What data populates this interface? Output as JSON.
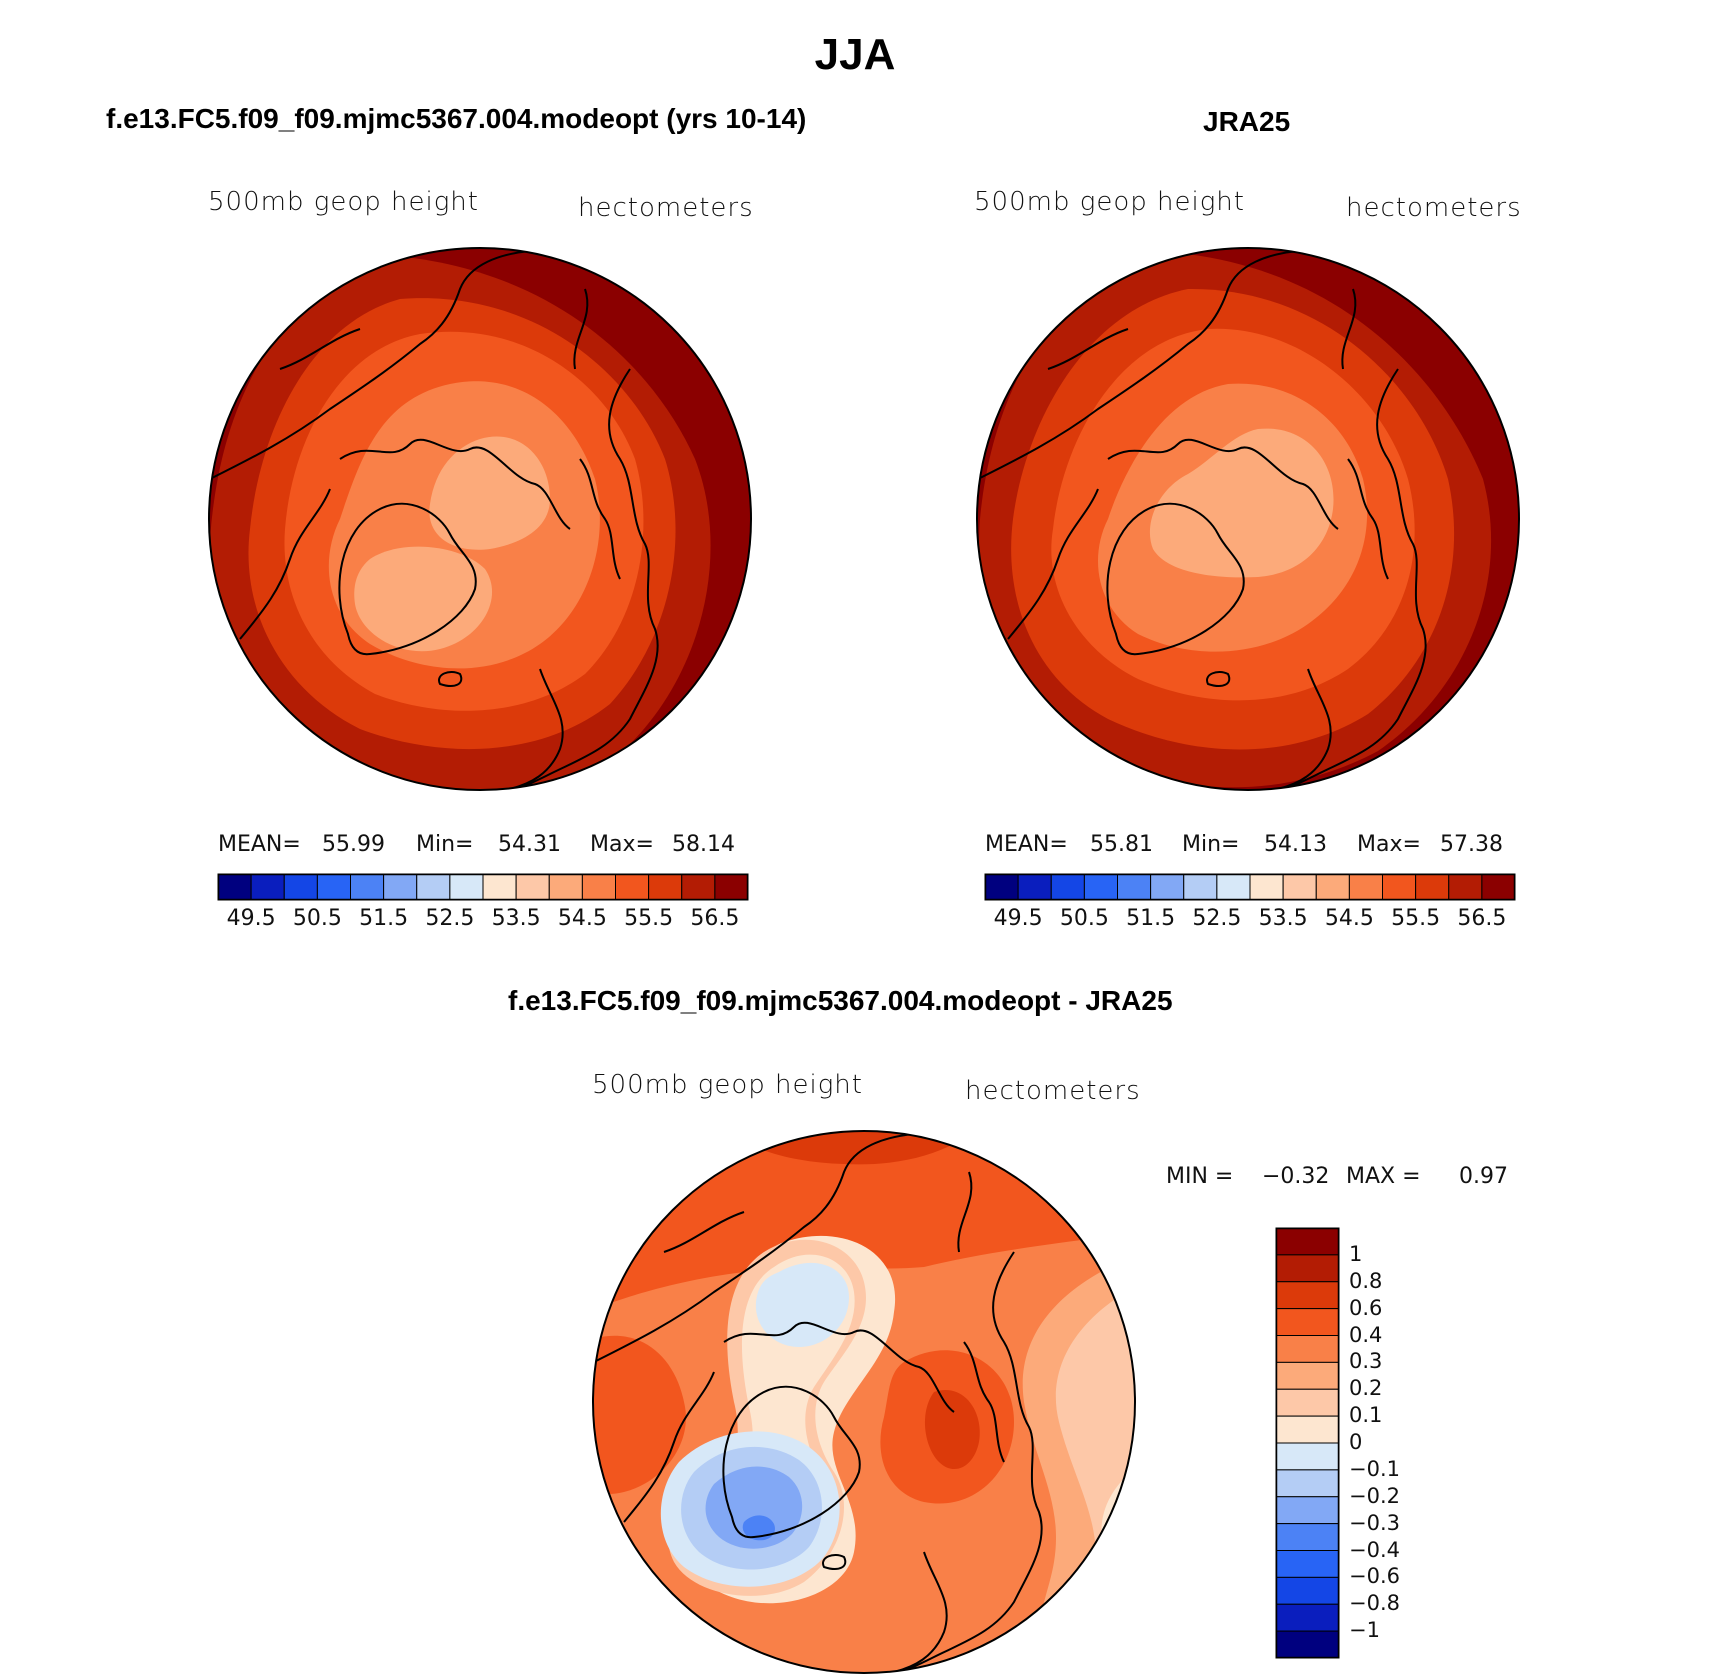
{
  "figure": {
    "title": "JJA",
    "panels": [
      {
        "id": "model",
        "title": "f.e13.FC5.f09_f09.mjmc5367.004.modeopt (yrs 10-14)",
        "field_label": "500mb geop height",
        "units_label": "hectometers",
        "stats": {
          "mean_label": "MEAN=",
          "mean": "55.99",
          "min_label": "Min=",
          "min": "54.31",
          "max_label": "Max=",
          "max": "58.14"
        },
        "colorbar_ticks": [
          "49.5",
          "50.5",
          "51.5",
          "52.5",
          "53.5",
          "54.5",
          "55.5",
          "56.5"
        ]
      },
      {
        "id": "obs",
        "title": "JRA25",
        "field_label": "500mb geop height",
        "units_label": "hectometers",
        "stats": {
          "mean_label": "MEAN=",
          "mean": "55.81",
          "min_label": "Min=",
          "min": "54.13",
          "max_label": "Max=",
          "max": "57.38"
        },
        "colorbar_ticks": [
          "49.5",
          "50.5",
          "51.5",
          "52.5",
          "53.5",
          "54.5",
          "55.5",
          "56.5"
        ]
      }
    ],
    "diff": {
      "title": "f.e13.FC5.f09_f09.mjmc5367.004.modeopt - JRA25",
      "field_label": "500mb geop height",
      "units_label": "hectometers",
      "min_label": "MIN =",
      "min": "−0.32",
      "max_label": "MAX =",
      "max": "0.97",
      "colorbar_ticks": [
        "1",
        "0.8",
        "0.6",
        "0.4",
        "0.3",
        "0.2",
        "0.1",
        "0",
        "−0.1",
        "−0.2",
        "−0.3",
        "−0.4",
        "−0.6",
        "−0.8",
        "−1"
      ]
    }
  },
  "chart_data": [
    {
      "type": "heatmap",
      "title": "f.e13.FC5.f09_f09.mjmc5367.004.modeopt (yrs 10-14)",
      "projection": "north polar stereographic",
      "contour_levels": [
        49.5,
        50.0,
        50.5,
        51.0,
        51.5,
        52.0,
        52.5,
        53.0,
        53.5,
        54.0,
        54.5,
        55.0,
        55.5,
        56.0,
        56.5
      ],
      "fill_colors": [
        "#00007f",
        "#0a1ebe",
        "#1446e6",
        "#2864f5",
        "#4c82f5",
        "#82a8f5",
        "#b4cdf5",
        "#d7e8f8",
        "#fde6d0",
        "#fdc8a8",
        "#fcaa7a",
        "#f98048",
        "#f2561e",
        "#dc3a0a",
        "#b31c04",
        "#8b0000"
      ],
      "bands_outer_to_center": [
        56.75,
        56.25,
        55.75,
        55.25,
        54.75,
        54.25
      ],
      "mean": 55.99,
      "min": 54.31,
      "max": 58.14
    },
    {
      "type": "heatmap",
      "title": "JRA25",
      "projection": "north polar stereographic",
      "contour_levels": [
        49.5,
        50.0,
        50.5,
        51.0,
        51.5,
        52.0,
        52.5,
        53.0,
        53.5,
        54.0,
        54.5,
        55.0,
        55.5,
        56.0,
        56.5
      ],
      "fill_colors": [
        "#00007f",
        "#0a1ebe",
        "#1446e6",
        "#2864f5",
        "#4c82f5",
        "#82a8f5",
        "#b4cdf5",
        "#d7e8f8",
        "#fde6d0",
        "#fdc8a8",
        "#fcaa7a",
        "#f98048",
        "#f2561e",
        "#dc3a0a",
        "#b31c04",
        "#8b0000"
      ],
      "bands_outer_to_center": [
        56.75,
        56.25,
        55.75,
        55.25,
        54.75,
        54.25
      ],
      "mean": 55.81,
      "min": 54.13,
      "max": 57.38
    },
    {
      "type": "heatmap",
      "title": "f.e13.FC5.f09_f09.mjmc5367.004.modeopt - JRA25",
      "projection": "north polar stereographic",
      "contour_levels": [
        1,
        0.8,
        0.6,
        0.4,
        0.3,
        0.2,
        0.1,
        0,
        -0.1,
        -0.2,
        -0.3,
        -0.4,
        -0.6,
        -0.8,
        -1
      ],
      "fill_colors_top_to_bottom": [
        "#8b0000",
        "#b31c04",
        "#dc3a0a",
        "#f2561e",
        "#f98048",
        "#fcaa7a",
        "#fdc8a8",
        "#fde6d0",
        "#d7e8f8",
        "#b4cdf5",
        "#82a8f5",
        "#4c82f5",
        "#2864f5",
        "#1446e6",
        "#0a1ebe",
        "#00007f"
      ],
      "min": -0.32,
      "max": 0.97
    }
  ]
}
